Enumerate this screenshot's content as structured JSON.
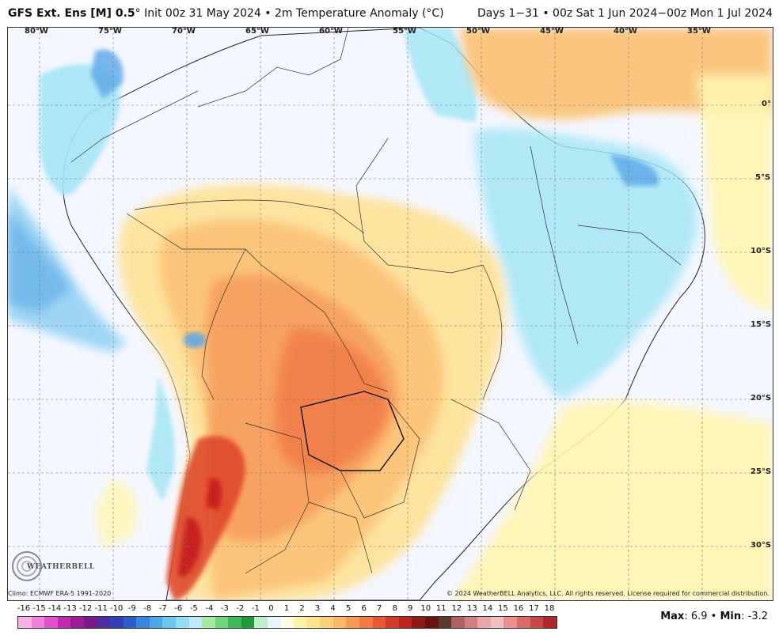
{
  "header": {
    "model": "GFS Ext.  Ens [M] 0.5",
    "degree": "°",
    "init": " Init 00z 31 May 2024 • 2m Temperature Anomaly (°C)",
    "valid": "Days 1−31 • 00z Sat 1 Jun 2024−00z Mon 1 Jul 2024"
  },
  "map": {
    "lon_labels": [
      "80°W",
      "75°W",
      "70°W",
      "65°W",
      "60°W",
      "55°W",
      "50°W",
      "45°W",
      "40°W",
      "35°W"
    ],
    "lat_labels": [
      "0°",
      "5°S",
      "10°S",
      "15°S",
      "20°S",
      "25°S",
      "30°S"
    ],
    "colors": {
      "ocean": "#f4f7ff",
      "cold_light": "#a6e6f5",
      "cold_mid": "#7fcdf0",
      "cold_deep": "#5aa8e8",
      "warm_pale": "#fff6b0",
      "warm_light": "#fde39a",
      "warm_orange": "#fbc479",
      "warm_mid": "#f7a15e",
      "warm_deep": "#f07a45",
      "hot": "#e04a2a",
      "hottest": "#c41e1a"
    }
  },
  "footer": {
    "climo": "Climo: ECMWF ERA-5 1991-2020",
    "copyright": "© 2024 WeatherBELL Analytics, LLC. All rights reserved. License required for commercial distribution.",
    "logo_text": "WEATHERBELL",
    "max_label": "Max",
    "max_value": ": 6.9 • ",
    "min_label": "Min",
    "min_value": ": -3.2"
  },
  "legend": {
    "ticks": [
      "-16",
      "-15",
      "-14",
      "-13",
      "-12",
      "-11",
      "-10",
      "-9",
      "-8",
      "-7",
      "-6",
      "-5",
      "-4",
      "-3",
      "-2",
      "-1",
      "0",
      "1",
      "2",
      "3",
      "4",
      "5",
      "6",
      "7",
      "8",
      "9",
      "10",
      "11",
      "12",
      "13",
      "14",
      "15",
      "16",
      "17",
      "18"
    ],
    "colors": [
      "#f5b3e6",
      "#ef7fd9",
      "#e052c8",
      "#c02ab0",
      "#9c1c96",
      "#7a1a8a",
      "#4f2ca0",
      "#3340b5",
      "#2e5cc8",
      "#3a86dc",
      "#4aa8e8",
      "#6cc6ef",
      "#94dcf3",
      "#bfe9f7",
      "#a8e8a0",
      "#6fd47a",
      "#3cba55",
      "#1f9a3a",
      "#bfeecd",
      "#e8f5ff",
      "#fffbe0",
      "#fff2a8",
      "#fde48f",
      "#fcd07a",
      "#fbb868",
      "#f79a55",
      "#f27a45",
      "#e85a35",
      "#d43a28",
      "#b8261e",
      "#8e1a16",
      "#6a1210",
      "#5a3a30",
      "#b06060",
      "#d08080",
      "#e8a8a8",
      "#f0c0c0",
      "#e89090",
      "#d86a6a",
      "#c84848",
      "#b02828"
    ]
  }
}
